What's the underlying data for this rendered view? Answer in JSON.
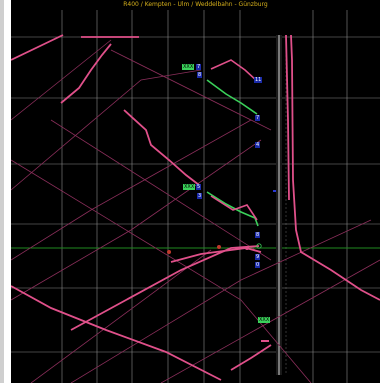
{
  "header": {
    "route": "R400 / Kempten - Ulm / Weddelbahn - Günzburg",
    "color": "#d6b01b"
  },
  "labels": {
    "block_a": "XXX",
    "block_a_num": "7",
    "block_a_sub": "8",
    "block_b": "XXX",
    "block_b_num": "5",
    "block_b_sub": "3",
    "bottom_block": "XXX",
    "markers": [
      "11",
      "7",
      "4",
      "8",
      "0",
      "9"
    ]
  },
  "colors": {
    "background": "#000000",
    "grid": "#8a8a8a",
    "path_primary": "#e0508a",
    "path_secondary": "#8a2e5a",
    "highlight_green": "#3ad15a",
    "horizontal_marker": "#1f8a1f",
    "axis": "#d8d8d8"
  }
}
